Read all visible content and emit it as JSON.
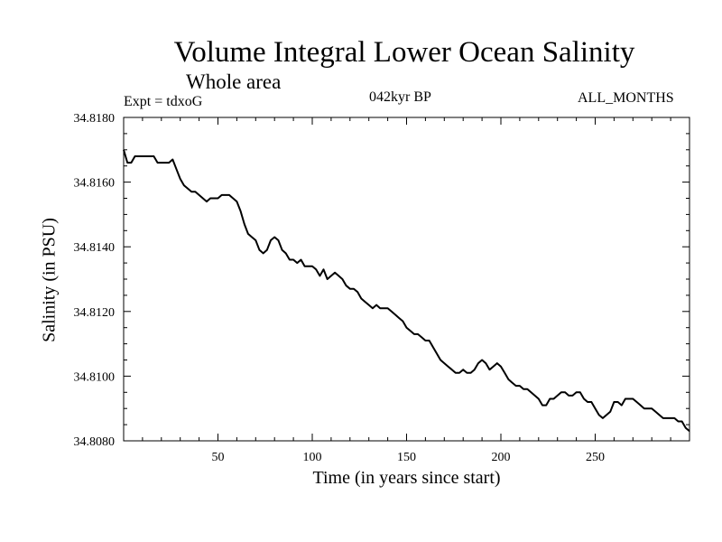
{
  "chart_data": {
    "type": "line",
    "title": "Volume Integral Lower Ocean Salinity",
    "subtitle": "Whole area",
    "annotations": {
      "experiment": "Expt = tdxoG",
      "period": "042kyr BP",
      "months": "ALL_MONTHS"
    },
    "xlabel": "Time (in years since start)",
    "ylabel": "Salinity (in PSU)",
    "xlim": [
      0,
      300
    ],
    "ylim": [
      34.808,
      34.818
    ],
    "x_ticks": [
      50,
      100,
      150,
      200,
      250
    ],
    "y_ticks": [
      "34.8080",
      "34.8100",
      "34.8120",
      "34.8140",
      "34.8160",
      "34.8180"
    ],
    "grid": false,
    "series": [
      {
        "x": [
          0,
          2,
          4,
          6,
          8,
          10,
          12,
          14,
          16,
          18,
          20,
          22,
          24,
          26,
          28,
          30,
          32,
          34,
          36,
          38,
          40,
          42,
          44,
          46,
          48,
          50,
          52,
          54,
          56,
          58,
          60,
          62,
          64,
          66,
          68,
          70,
          72,
          74,
          76,
          78,
          80,
          82,
          84,
          86,
          88,
          90,
          92,
          94,
          96,
          98,
          100,
          102,
          104,
          106,
          108,
          110,
          112,
          114,
          116,
          118,
          120,
          122,
          124,
          126,
          128,
          130,
          132,
          134,
          136,
          138,
          140,
          142,
          144,
          146,
          148,
          150,
          152,
          154,
          156,
          158,
          160,
          162,
          164,
          166,
          168,
          170,
          172,
          174,
          176,
          178,
          180,
          182,
          184,
          186,
          188,
          190,
          192,
          194,
          196,
          198,
          200,
          202,
          204,
          206,
          208,
          210,
          212,
          214,
          216,
          218,
          220,
          222,
          224,
          226,
          228,
          230,
          232,
          234,
          236,
          238,
          240,
          242,
          244,
          246,
          248,
          250,
          252,
          254,
          256,
          258,
          260,
          262,
          264,
          266,
          268,
          270,
          272,
          274,
          276,
          278,
          280,
          282,
          284,
          286,
          288,
          290,
          292,
          294,
          296,
          298,
          300
        ],
        "y": [
          34.817,
          34.8166,
          34.8166,
          34.8168,
          34.8168,
          34.8168,
          34.8168,
          34.8168,
          34.8168,
          34.8166,
          34.8166,
          34.8166,
          34.8166,
          34.8167,
          34.8164,
          34.8161,
          34.8159,
          34.8158,
          34.8157,
          34.8157,
          34.8156,
          34.8155,
          34.8154,
          34.8155,
          34.8155,
          34.8155,
          34.8156,
          34.8156,
          34.8156,
          34.8155,
          34.8154,
          34.8151,
          34.8147,
          34.8144,
          34.8143,
          34.8142,
          34.8139,
          34.8138,
          34.8139,
          34.8142,
          34.8143,
          34.8142,
          34.8139,
          34.8138,
          34.8136,
          34.8136,
          34.8135,
          34.8136,
          34.8134,
          34.8134,
          34.8134,
          34.8133,
          34.8131,
          34.8133,
          34.813,
          34.8131,
          34.8132,
          34.8131,
          34.813,
          34.8128,
          34.8127,
          34.8127,
          34.8126,
          34.8124,
          34.8123,
          34.8122,
          34.8121,
          34.8122,
          34.8121,
          34.8121,
          34.8121,
          34.812,
          34.8119,
          34.8118,
          34.8117,
          34.8115,
          34.8114,
          34.8113,
          34.8113,
          34.8112,
          34.8111,
          34.8111,
          34.8109,
          34.8107,
          34.8105,
          34.8104,
          34.8103,
          34.8102,
          34.8101,
          34.8101,
          34.8102,
          34.8101,
          34.8101,
          34.8102,
          34.8104,
          34.8105,
          34.8104,
          34.8102,
          34.8103,
          34.8104,
          34.8103,
          34.8101,
          34.8099,
          34.8098,
          34.8097,
          34.8097,
          34.8096,
          34.8096,
          34.8095,
          34.8094,
          34.8093,
          34.8091,
          34.8091,
          34.8093,
          34.8093,
          34.8094,
          34.8095,
          34.8095,
          34.8094,
          34.8094,
          34.8095,
          34.8095,
          34.8093,
          34.8092,
          34.8092,
          34.809,
          34.8088,
          34.8087,
          34.8088,
          34.8089,
          34.8092,
          34.8092,
          34.8091,
          34.8093,
          34.8093,
          34.8093,
          34.8092,
          34.8091,
          34.809,
          34.809,
          34.809,
          34.8089,
          34.8088,
          34.8087,
          34.8087,
          34.8087,
          34.8087,
          34.8086,
          34.8086,
          34.8084,
          34.8083
        ],
        "color": "#000000"
      }
    ]
  }
}
